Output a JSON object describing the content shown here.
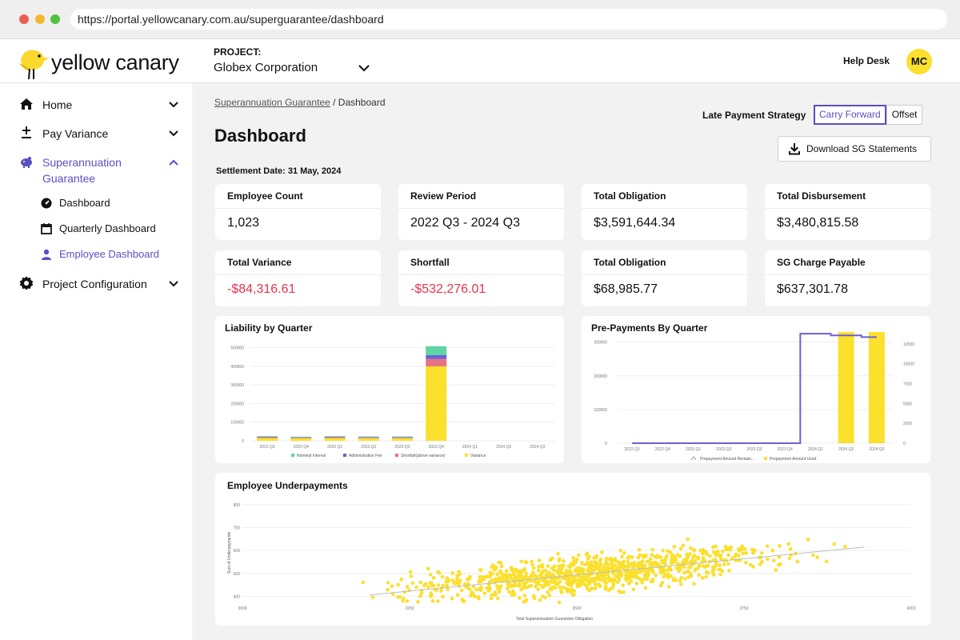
{
  "browser": {
    "url": "https://portal.yellowcanary.com.au/superguarantee/dashboard"
  },
  "header": {
    "logo_text": "yellow canary",
    "project_label": "PROJECT:",
    "project_value": "Globex Corporation",
    "help_desk": "Help Desk",
    "avatar_initials": "MC"
  },
  "sidebar": {
    "items": [
      {
        "label": "Home",
        "icon": "home-icon"
      },
      {
        "label": "Pay Variance",
        "icon": "plus-minus-icon"
      },
      {
        "label": "Superannuation Guarantee",
        "icon": "piggy-bank-icon",
        "active": true
      },
      {
        "label": "Project Configuration",
        "icon": "gear-icon"
      }
    ],
    "sub_items": [
      {
        "label": "Dashboard",
        "icon": "dashboard-icon"
      },
      {
        "label": "Quarterly Dashboard",
        "icon": "calendar-icon"
      },
      {
        "label": "Employee Dashboard",
        "icon": "user-icon",
        "active": true
      }
    ]
  },
  "main": {
    "breadcrumb_link": "Superannuation Guarantee",
    "breadcrumb_current": " / Dashboard",
    "title": "Dashboard",
    "settlement_date": "Settlement Date: 31 May, 2024",
    "late_payment_label": "Late Payment Strategy",
    "strategy_options": [
      "Carry Forward",
      "Offset"
    ],
    "download_button": "Download SG Statements"
  },
  "kpis": [
    {
      "label": "Employee Count",
      "value": "1,023"
    },
    {
      "label": "Review Period",
      "value": "2022 Q3 - 2024 Q3"
    },
    {
      "label": "Total Obligation",
      "value": "$3,591,644.34"
    },
    {
      "label": "Total Disbursement",
      "value": "$3,480,815.58"
    },
    {
      "label": "Total Variance",
      "value": "-$84,316.61"
    },
    {
      "label": "Shortfall",
      "value": "-$532,276.01"
    },
    {
      "label": "Total Obligation",
      "value": "$68,985.77"
    },
    {
      "label": "SG Charge Payable",
      "value": "$637,301.78"
    }
  ],
  "colors": {
    "accent": "#5b4fc4",
    "negative": "#e4344e",
    "yellow": "#fbe02d",
    "teal": "#5fd4a4",
    "purple": "#6c5fd6",
    "red": "#e57384"
  },
  "chart_data": [
    {
      "type": "bar",
      "title": "Liability by Quarter",
      "stacked": true,
      "categories": [
        "2022 Q3",
        "2022 Q4",
        "2023 Q1",
        "2023 Q2",
        "2023 Q3",
        "2023 Q4",
        "2024 Q1",
        "2024 Q2",
        "2024 Q3"
      ],
      "y_ticks": [
        "0",
        "100000",
        "200000",
        "300000",
        "400000",
        "500000"
      ],
      "ylim": [
        0,
        520000
      ],
      "series": [
        {
          "name": "Variance",
          "color": "#fbe02d",
          "values": [
            15000,
            14000,
            15000,
            14000,
            14000,
            400000,
            0,
            0,
            0
          ]
        },
        {
          "name": "Shortfall(above variance)",
          "color": "#e57384",
          "values": [
            4000,
            3000,
            4000,
            3000,
            3000,
            40000,
            0,
            0,
            0
          ]
        },
        {
          "name": "Administration Fee",
          "color": "#6c5fd6",
          "values": [
            3000,
            2000,
            3000,
            3000,
            3000,
            20000,
            0,
            0,
            0
          ]
        },
        {
          "name": "Nominal Interest",
          "color": "#5fd4a4",
          "values": [
            3000,
            3000,
            3000,
            3000,
            3000,
            48000,
            0,
            0,
            0
          ]
        }
      ],
      "legend_order": [
        "Nominal Interest",
        "Administration Fee",
        "Shortfall(above variance)",
        "Variance"
      ],
      "legend": "bottom",
      "grid": true
    },
    {
      "type": "bar",
      "title": "Pre-Payments By Quarter",
      "categories": [
        "2022 Q3",
        "2022 Q4",
        "2023 Q1",
        "2023 Q2",
        "2023 Q3",
        "2023 Q4",
        "2024 Q1",
        "2024 Q2",
        "2024 Q3"
      ],
      "y_ticks_left": [
        "0",
        "100000",
        "200000",
        "300000"
      ],
      "ylim_left": [
        0,
        330000
      ],
      "y_ticks_right": [
        "0",
        "2500",
        "5000",
        "7500",
        "10000",
        "12500"
      ],
      "ylim_right": [
        0,
        14000
      ],
      "series": [
        {
          "name": "Prepayment Amount Remain...",
          "type": "line",
          "axis": "left",
          "color": "#6c5fd6",
          "values": [
            0,
            0,
            0,
            0,
            0,
            0,
            325000,
            320000,
            315000
          ]
        },
        {
          "name": "Prepayment Amount Used",
          "type": "bar",
          "axis": "right",
          "color": "#fbe02d",
          "values": [
            0,
            0,
            0,
            0,
            0,
            0,
            0,
            14000,
            14000
          ]
        }
      ],
      "legend": "bottom",
      "grid": true
    },
    {
      "type": "scatter",
      "title": "Employee Underpayments",
      "xlabel": "Total Superannuation Guarantee Obligation",
      "ylabel": "Sum of Underpayments",
      "xlim": [
        3000,
        4000
      ],
      "ylim": [
        370,
        810
      ],
      "x_ticks": [
        "3000",
        "3250",
        "3500",
        "3750",
        "4000"
      ],
      "y_ticks": [
        "400",
        "500",
        "600",
        "700",
        "800"
      ],
      "point_count": 1023,
      "trendline": {
        "x": [
          3190,
          3930
        ],
        "y": [
          406,
          615
        ]
      },
      "color": "#fbe02d",
      "grid": true
    }
  ]
}
